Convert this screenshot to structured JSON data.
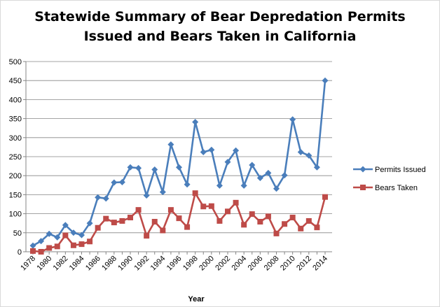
{
  "chart_data": {
    "type": "line",
    "title_line1": "Statewide Summary of Bear Depredation Permits",
    "title_line2": "Issued and Bears Taken in California",
    "xlabel": "Year",
    "ylabel": "",
    "ylim": [
      0,
      500
    ],
    "yticks": [
      0,
      50,
      100,
      150,
      200,
      250,
      300,
      350,
      400,
      450,
      500
    ],
    "x": [
      1978,
      1979,
      1980,
      1981,
      1982,
      1983,
      1984,
      1985,
      1986,
      1987,
      1988,
      1989,
      1990,
      1991,
      1992,
      1993,
      1994,
      1995,
      1996,
      1997,
      1998,
      1999,
      2000,
      2001,
      2002,
      2003,
      2004,
      2005,
      2006,
      2007,
      2008,
      2009,
      2010,
      2011,
      2012,
      2013,
      2014
    ],
    "xtick_labels": [
      1978,
      1980,
      1982,
      1984,
      1986,
      1988,
      1990,
      1992,
      1994,
      1996,
      1998,
      2000,
      2002,
      2004,
      2006,
      2008,
      2010,
      2012,
      2014
    ],
    "grid": "horizontal",
    "legend_position": "right",
    "series": [
      {
        "name": "Permits Issued",
        "color": "#4a7ebb",
        "marker": "diamond",
        "values": [
          16,
          28,
          47,
          38,
          70,
          50,
          44,
          75,
          143,
          140,
          182,
          183,
          222,
          220,
          148,
          216,
          157,
          282,
          222,
          177,
          341,
          262,
          268,
          174,
          236,
          266,
          174,
          228,
          194,
          207,
          166,
          201,
          348,
          262,
          253,
          222,
          450
        ]
      },
      {
        "name": "Bears Taken",
        "color": "#be4b48",
        "marker": "square",
        "values": [
          2,
          0,
          10,
          14,
          43,
          17,
          20,
          27,
          63,
          87,
          77,
          81,
          90,
          110,
          42,
          79,
          56,
          110,
          88,
          65,
          154,
          119,
          120,
          81,
          106,
          129,
          71,
          99,
          79,
          93,
          48,
          73,
          90,
          61,
          81,
          64,
          144
        ]
      }
    ]
  }
}
